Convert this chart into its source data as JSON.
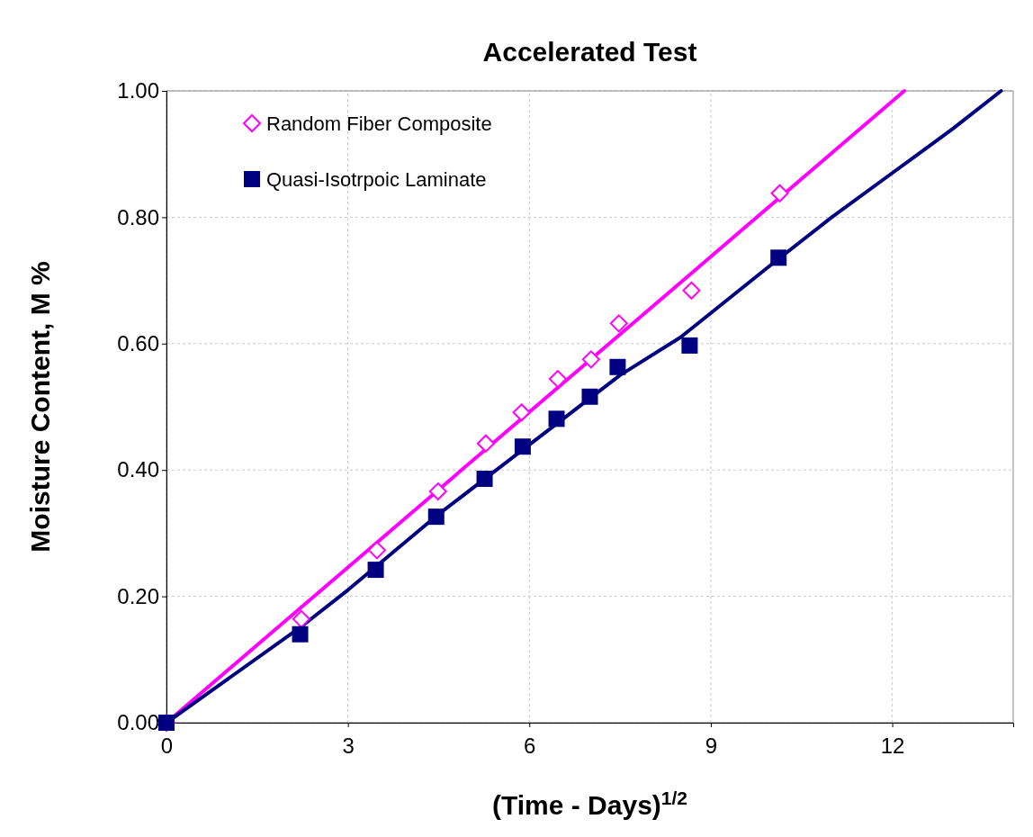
{
  "chart_data": {
    "type": "scatter",
    "title": "Accelerated Test",
    "xlabel": "(Time - Days)$^{1/2}$",
    "ylabel": "Moisture Content, M %",
    "xlim": [
      0,
      14
    ],
    "xticks": [
      0,
      3,
      6,
      9,
      12
    ],
    "ylim": [
      0,
      1
    ],
    "yticks": [
      {
        "value": 0,
        "label": "0.00"
      },
      {
        "value": 0.2,
        "label": "0.20"
      },
      {
        "value": 0.4,
        "label": "0.40"
      },
      {
        "value": 0.6,
        "label": "0.60"
      },
      {
        "value": 0.8,
        "label": "0.80"
      },
      {
        "value": 1,
        "label": "1.00"
      }
    ],
    "grid": true,
    "legend": "top left",
    "series": [
      {
        "type": "line",
        "color": "#ff00ff",
        "marker": "none",
        "x": [
          0,
          12.2
        ],
        "values": [
          0,
          1.0
        ]
      },
      {
        "type": "line",
        "color": "#000080",
        "marker": "none",
        "x": [
          0,
          2.2,
          3,
          3.5,
          4.5,
          6,
          7.5,
          8.5,
          10,
          11,
          12,
          13,
          13.8
        ],
        "values": [
          0,
          0.15,
          0.21,
          0.25,
          0.33,
          0.44,
          0.55,
          0.61,
          0.725,
          0.8,
          0.87,
          0.94,
          1.0
        ]
      },
      {
        "name": "Random Fiber Composite",
        "color": "#ff00ff",
        "marker": "diamond",
        "x": [
          0,
          2.23,
          3.48,
          4.49,
          5.28,
          5.87,
          6.47,
          7.02,
          7.48,
          8.68,
          10.14
        ],
        "values": [
          0,
          0.164,
          0.273,
          0.366,
          0.442,
          0.491,
          0.544,
          0.575,
          0.632,
          0.684,
          0.838
        ]
      },
      {
        "name": "Quasi-Isotrpoic Laminate",
        "color": "#000080",
        "marker": "square",
        "x": [
          0,
          2.21,
          3.46,
          4.46,
          5.26,
          5.89,
          6.45,
          7.0,
          7.46,
          8.65,
          10.12
        ],
        "values": [
          0,
          0.14,
          0.242,
          0.326,
          0.386,
          0.437,
          0.481,
          0.516,
          0.563,
          0.597,
          0.736
        ]
      }
    ]
  }
}
